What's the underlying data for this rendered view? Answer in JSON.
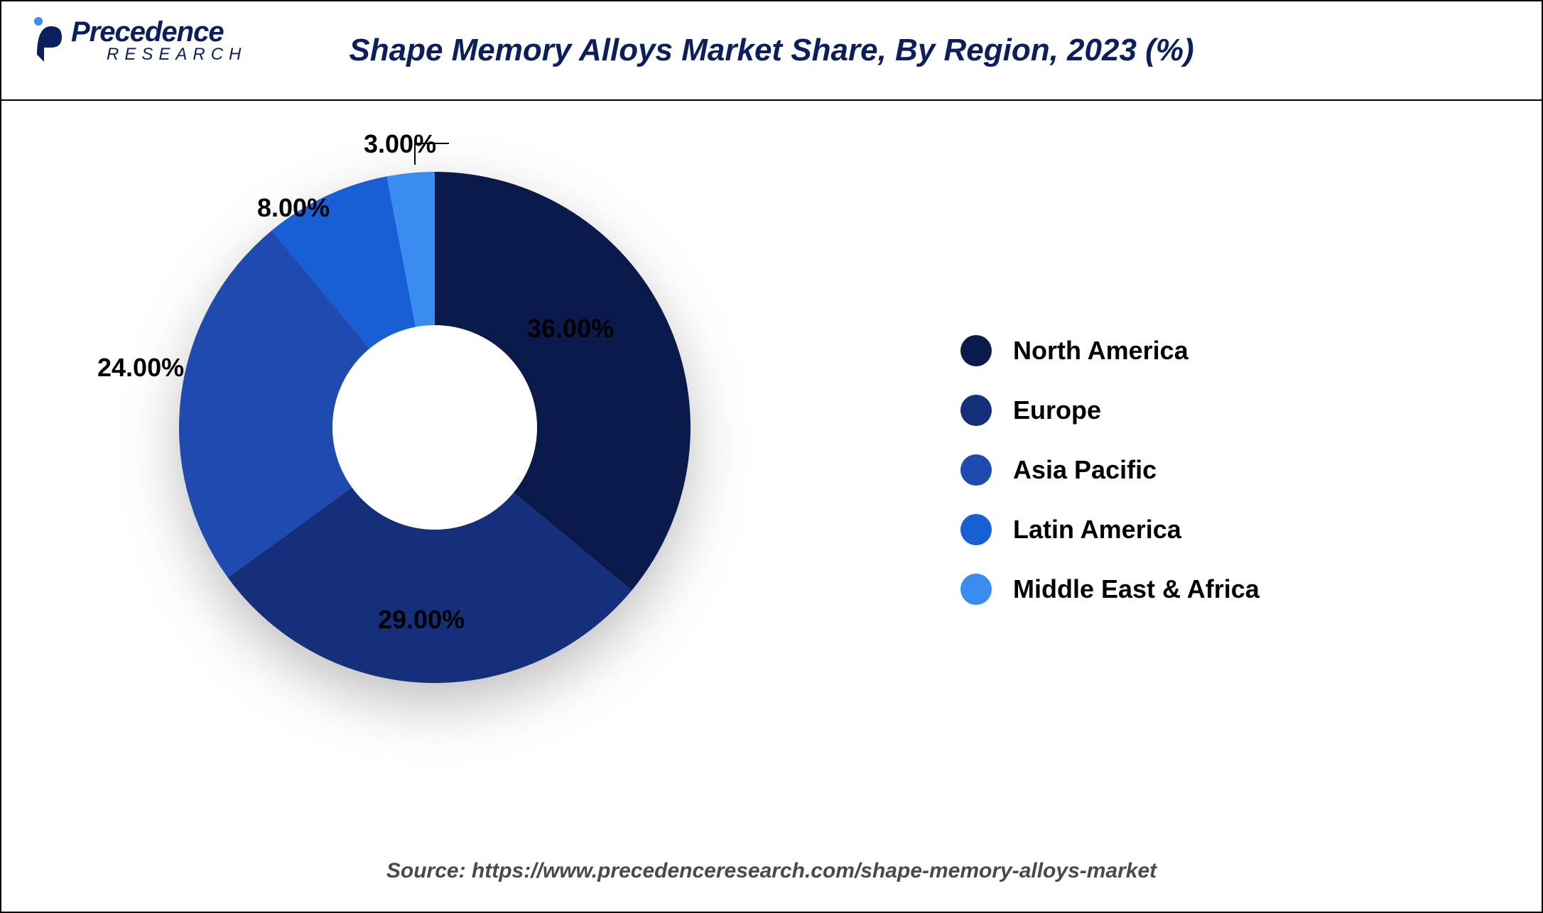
{
  "logo": {
    "main": "recedence",
    "p": "P",
    "sub": "RESEARCH"
  },
  "title": "Shape Memory Alloys Market Share, By Region, 2023 (%)",
  "chart": {
    "type": "donut",
    "background_color": "#ffffff",
    "inner_radius_ratio": 0.4,
    "slices": [
      {
        "label": "North America",
        "value": 36.0,
        "display": "36.00%",
        "color": "#0a1a4a"
      },
      {
        "label": "Europe",
        "value": 29.0,
        "display": "29.00%",
        "color": "#152f7a"
      },
      {
        "label": "Asia Pacific",
        "value": 24.0,
        "display": "24.00%",
        "color": "#1f4aaf"
      },
      {
        "label": "Latin America",
        "value": 8.0,
        "display": "8.00%",
        "color": "#185fd6"
      },
      {
        "label": "Middle East & Africa",
        "value": 3.0,
        "display": "3.00%",
        "color": "#3b8cf0"
      }
    ],
    "label_fontsize": 36,
    "label_fontweight": 700,
    "shadow_color": "rgba(0,0,0,0.25)"
  },
  "legend": {
    "items": [
      {
        "label": "North America",
        "color": "#0a1a4a"
      },
      {
        "label": "Europe",
        "color": "#152f7a"
      },
      {
        "label": "Asia Pacific",
        "color": "#1f4aaf"
      },
      {
        "label": "Latin America",
        "color": "#185fd6"
      },
      {
        "label": "Middle East & Africa",
        "color": "#3b8cf0"
      }
    ],
    "dot_size": 44,
    "fontsize": 36,
    "fontweight": 700
  },
  "source": "Source: https://www.precedenceresearch.com/shape-memory-alloys-market"
}
